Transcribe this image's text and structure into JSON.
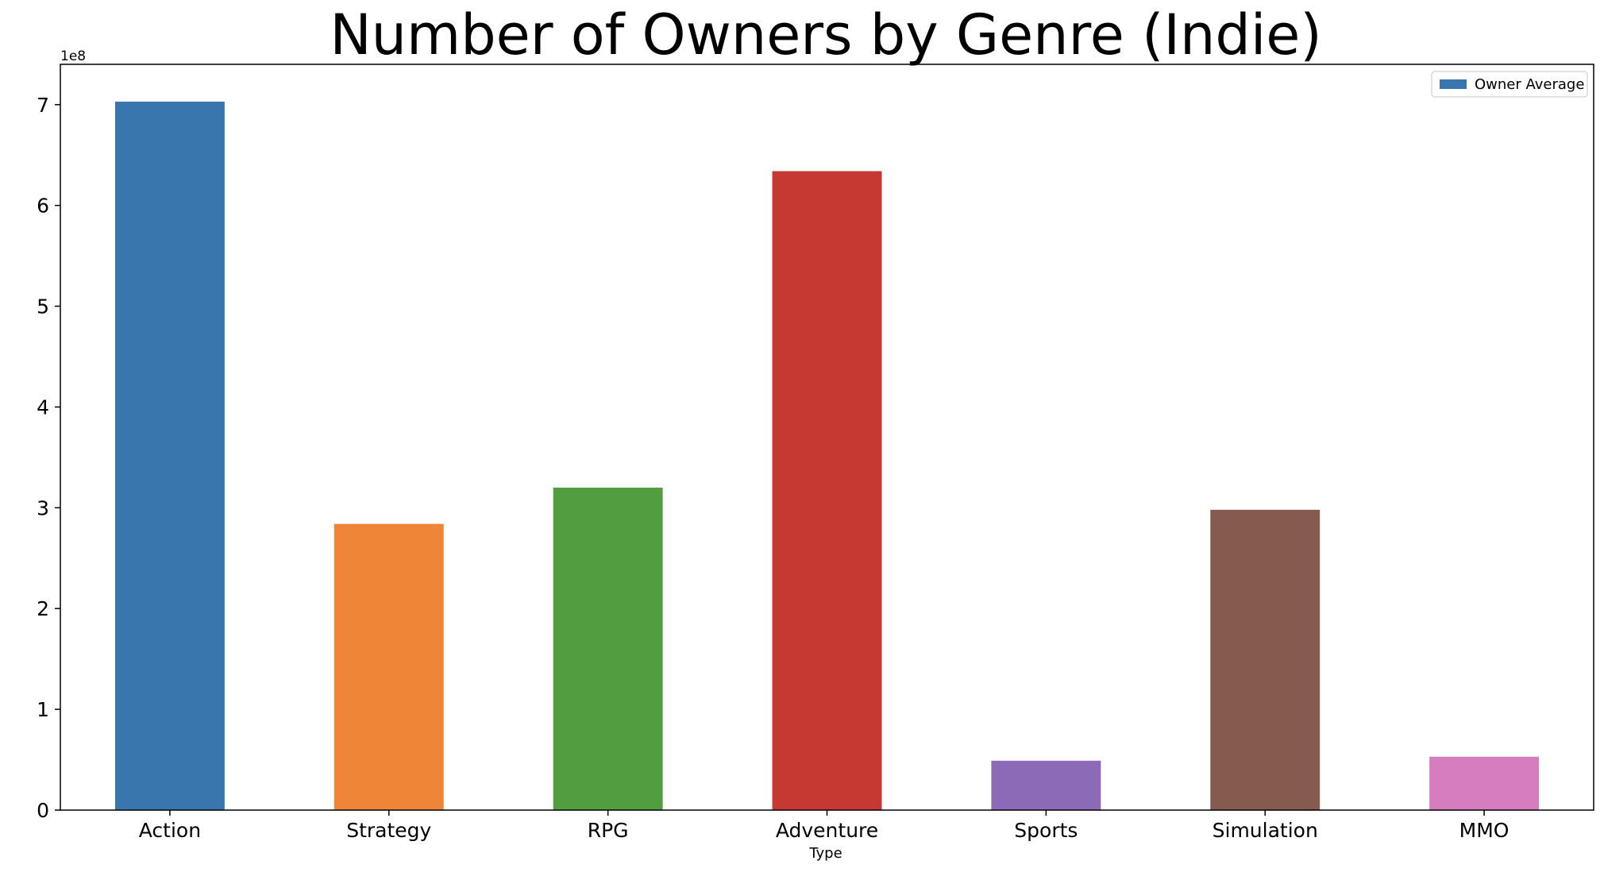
{
  "chart_data": {
    "type": "bar",
    "title": "Number of Owners by Genre (Indie)",
    "xlabel": "Type",
    "ylabel": "",
    "offset_text": "1e8",
    "categories": [
      "Action",
      "Strategy",
      "RPG",
      "Adventure",
      "Sports",
      "Simulation",
      "MMO"
    ],
    "series": [
      {
        "name": "Owner Average",
        "values": [
          703000000,
          284000000,
          320000000,
          634000000,
          49000000,
          298000000,
          53000000
        ]
      }
    ],
    "bar_colors": [
      "#3a76ae",
      "#ef8536",
      "#529d3f",
      "#c53932",
      "#8d6ab8",
      "#845b4e",
      "#d57dbf"
    ],
    "legend_color": "#3a76ae",
    "ylim": [
      0,
      740000000
    ],
    "yticks": [
      0,
      100000000,
      200000000,
      300000000,
      400000000,
      500000000,
      600000000,
      700000000
    ],
    "ytick_labels": [
      "0",
      "1",
      "2",
      "3",
      "4",
      "5",
      "6",
      "7"
    ],
    "legend_position": "top-right",
    "grid": false
  }
}
